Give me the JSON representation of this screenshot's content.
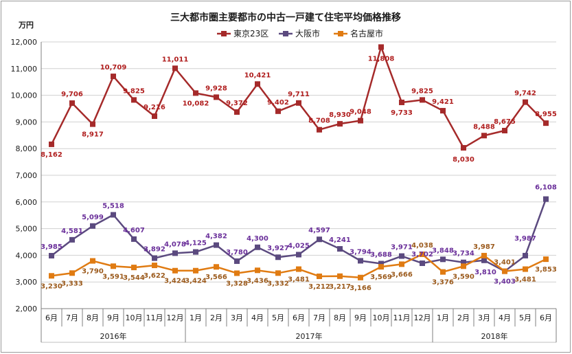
{
  "chart_data": {
    "type": "line",
    "title": "三大都市圏主要都市の中古一戸建て住宅平均価格推移",
    "ylabel": "万円",
    "ylim": [
      2000,
      12000
    ],
    "yticks": [
      "2,000",
      "3,000",
      "4,000",
      "5,000",
      "6,000",
      "7,000",
      "8,000",
      "9,000",
      "10,000",
      "11,000",
      "12,000"
    ],
    "categories": [
      "6月",
      "7月",
      "8月",
      "9月",
      "10月",
      "11月",
      "12月",
      "1月",
      "2月",
      "3月",
      "4月",
      "5月",
      "6月",
      "7月",
      "8月",
      "9月",
      "10月",
      "11月",
      "12月",
      "1月",
      "2月",
      "3月",
      "4月",
      "5月",
      "6月"
    ],
    "year_groups": [
      {
        "label": "2016年",
        "start": 0,
        "end": 6
      },
      {
        "label": "2017年",
        "start": 7,
        "end": 18
      },
      {
        "label": "2018年",
        "start": 19,
        "end": 24
      }
    ],
    "grid": true,
    "legend_position": "top",
    "series": [
      {
        "name": "東京23区",
        "color": "#a52a2a",
        "label_color": "#b01e1e",
        "values": [
          8162,
          9706,
          8917,
          10709,
          9825,
          9216,
          11011,
          10082,
          9928,
          9372,
          10421,
          9402,
          9711,
          8708,
          8930,
          9048,
          11808,
          9733,
          9825,
          9421,
          8030,
          8488,
          8675,
          9742,
          8955
        ],
        "labels": [
          "8,162",
          "9,706",
          "8,917",
          "10,709",
          "9,825",
          "9,216",
          "11,011",
          "10,082",
          "9,928",
          "9,372",
          "10,421",
          "9,402",
          "9,711",
          "8,708",
          "8,930",
          "9,048",
          "11,808",
          "9,733",
          "9,825",
          "9,421",
          "8,030",
          "8,488",
          "8,675",
          "9,742",
          "8,955"
        ]
      },
      {
        "name": "大阪市",
        "color": "#5b4a7f",
        "label_color": "#6a2f9a",
        "values": [
          3985,
          4581,
          5099,
          5518,
          4607,
          3892,
          4078,
          4125,
          4382,
          3780,
          4300,
          3927,
          4025,
          4597,
          4241,
          3794,
          3688,
          3971,
          3702,
          3848,
          3734,
          3810,
          3403,
          3987,
          6108
        ],
        "labels": [
          "3,985",
          "4,581",
          "5,099",
          "5,518",
          "4,607",
          "3,892",
          "4,078",
          "4,125",
          "4,382",
          "3,780",
          "4,300",
          "3,927",
          "4,025",
          "4,597",
          "4,241",
          "3,794",
          "3,688",
          "3,971",
          "3,702",
          "3,848",
          "3,734",
          "3,810",
          "3,403",
          "3,987",
          "6,108"
        ]
      },
      {
        "name": "名古屋市",
        "color": "#e07b12",
        "label_color": "#9b5a1c",
        "values": [
          3230,
          3333,
          3790,
          3591,
          3544,
          3622,
          3424,
          3424,
          3566,
          3328,
          3436,
          3332,
          3481,
          3212,
          3217,
          3166,
          3569,
          3666,
          4038,
          3376,
          3590,
          3987,
          3401,
          3481,
          3853
        ],
        "labels": [
          "3,230",
          "3,333",
          "3,790",
          "3,591",
          "3,544",
          "3,622",
          "3,424",
          "3,424",
          "3,566",
          "3,328",
          "3,436",
          "3,332",
          "3,481",
          "3,212",
          "3,217",
          "3,166",
          "3,569",
          "3,666",
          "4,038",
          "3,376",
          "3,590",
          "3,987",
          "3,401",
          "3,481",
          "3,853"
        ]
      }
    ]
  }
}
